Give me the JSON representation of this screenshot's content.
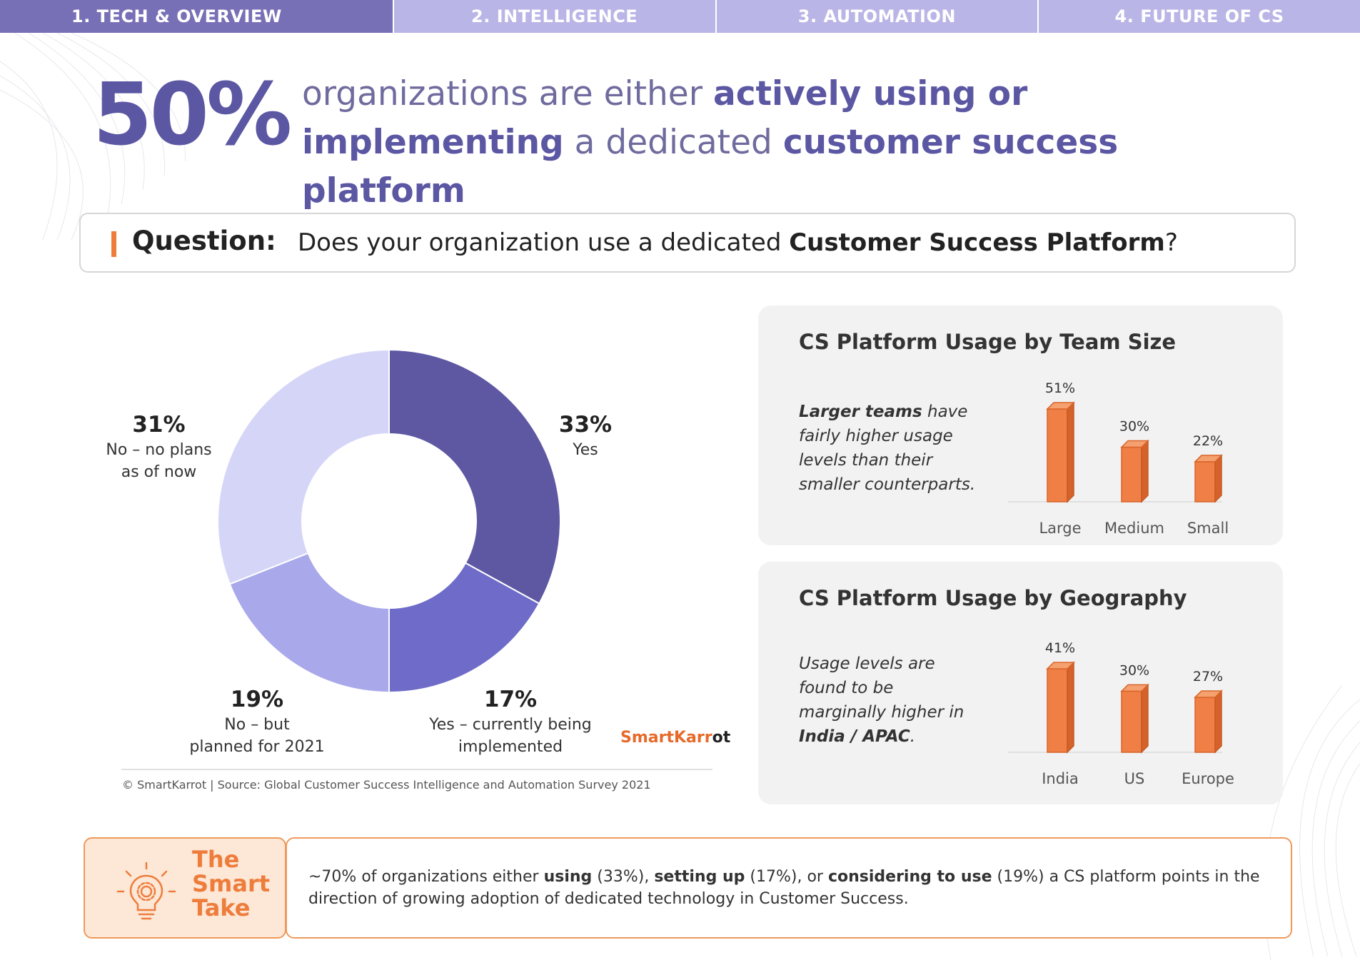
{
  "tabs": [
    {
      "label": "1. TECH & OVERVIEW",
      "active": true
    },
    {
      "label": "2. INTELLIGENCE",
      "active": false
    },
    {
      "label": "3. AUTOMATION",
      "active": false
    },
    {
      "label": "4. FUTURE OF CS",
      "active": false
    }
  ],
  "headline": {
    "stat": "50%",
    "text_1": "organizations are either ",
    "bold_1": "actively using or implementing",
    "text_2": " a dedicated ",
    "bold_2": "customer success platform"
  },
  "question": {
    "label": "Question:",
    "text_1": "Does your organization use a dedicated ",
    "bold": "Customer Success Platform",
    "text_2": "?"
  },
  "colors": {
    "accent_orange": "#ee7d3c",
    "brand_purple": "#5c57a3",
    "donut": [
      "#5e58a3",
      "#6e6cc8",
      "#a9a8ea",
      "#d5d5f8"
    ],
    "bar": "#f07f45"
  },
  "chart_data": [
    {
      "type": "pie",
      "donut": true,
      "slices": [
        {
          "pct_label": "33%",
          "label": "Yes",
          "value": 33
        },
        {
          "pct_label": "17%",
          "label": "Yes – currently being implemented",
          "value": 17
        },
        {
          "pct_label": "19%",
          "label": "No – but planned for 2021",
          "value": 19
        },
        {
          "pct_label": "31%",
          "label": "No – no plans as of now",
          "value": 31
        }
      ]
    },
    {
      "type": "bar",
      "title": "CS Platform Usage by Team Size",
      "categories": [
        "Large",
        "Medium",
        "Small"
      ],
      "values": [
        51,
        30,
        22
      ],
      "labels": [
        "51%",
        "30%",
        "22%"
      ]
    },
    {
      "type": "bar",
      "title": "CS Platform Usage by Geography",
      "categories": [
        "India",
        "US",
        "Europe"
      ],
      "values": [
        41,
        30,
        27
      ],
      "labels": [
        "41%",
        "30%",
        "27%"
      ]
    }
  ],
  "donut_labels": {
    "yes": {
      "pct": "33%",
      "line1": "Yes"
    },
    "implementing": {
      "pct": "17%",
      "line1": "Yes – currently being",
      "line2": "implemented"
    },
    "planned": {
      "pct": "19%",
      "line1": "No – but",
      "line2": "planned for 2021"
    },
    "no_plans": {
      "pct": "31%",
      "line1": "No – no plans",
      "line2": "as of now"
    }
  },
  "brand": {
    "part1": "SmartKarr",
    "mark": "o",
    "part2": "t"
  },
  "source": "© SmartKarrot | Source: Global Customer Success Intelligence and Automation Survey 2021",
  "panel_team": {
    "title": "CS Platform Usage by Team Size",
    "desc_bold": "Larger teams",
    "desc_rest": " have fairly higher usage levels than their smaller counterparts."
  },
  "panel_geo": {
    "title": "CS Platform Usage by Geography",
    "desc_rest": "Usage levels are found to be marginally higher in ",
    "desc_bold": "India / APAC",
    "desc_end": "."
  },
  "smart_take": {
    "title_1": "The",
    "title_2": "Smart",
    "title_3": "Take",
    "t1": "~70% of organizations either ",
    "b1": "using",
    "t2": " (33%), ",
    "b2": "setting up",
    "t3": " (17%), or ",
    "b3": "considering to use",
    "t4": " (19%) a CS platform points in the direction of growing adoption of dedicated technology in Customer Success."
  }
}
